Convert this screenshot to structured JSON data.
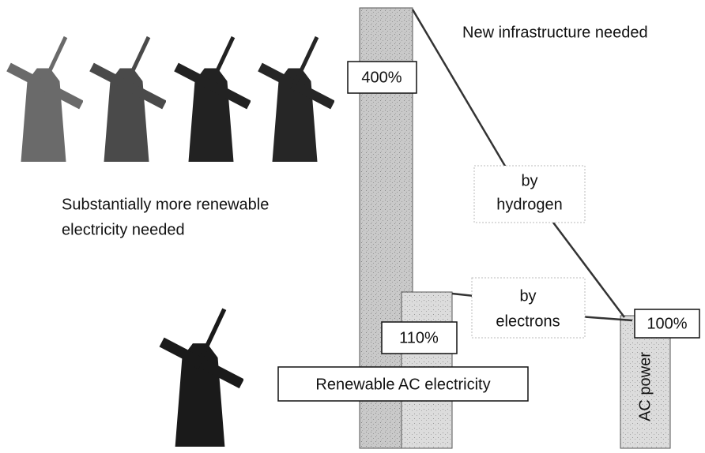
{
  "header": {
    "title": "New infrastructure needed"
  },
  "note": {
    "lines": [
      "Substantially more renewable",
      "electricity needed"
    ]
  },
  "hydrogen": {
    "lines": [
      "by",
      "hydrogen"
    ],
    "label": "400%"
  },
  "electrons": {
    "lines": [
      "by",
      "electrons"
    ],
    "label": "110%"
  },
  "ac_power": {
    "label": "100%",
    "bar_label": "AC power"
  },
  "renewable": {
    "label": "Renewable AC electricity"
  }
}
